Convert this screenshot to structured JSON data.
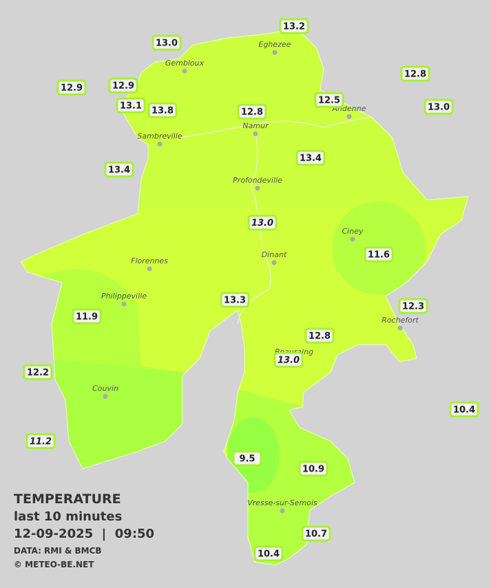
{
  "stations": [
    {
      "value": "13.0"
    },
    {
      "value": "13.2"
    },
    {
      "value": "12.9"
    },
    {
      "value": "12.9"
    },
    {
      "value": "12.8"
    },
    {
      "value": "13.1"
    },
    {
      "value": "13.8"
    },
    {
      "value": "12.8"
    },
    {
      "value": "12.5"
    },
    {
      "value": "13.0"
    },
    {
      "value": "13.4"
    },
    {
      "value": "13.4"
    },
    {
      "value": "13.0"
    },
    {
      "value": "11.6"
    },
    {
      "value": "13.3"
    },
    {
      "value": "12.3"
    },
    {
      "value": "11.9"
    },
    {
      "value": "12.8"
    },
    {
      "value": "13.0"
    },
    {
      "value": "12.2"
    },
    {
      "value": "10.4"
    },
    {
      "value": "11.2"
    },
    {
      "value": "9.5"
    },
    {
      "value": "10.9"
    },
    {
      "value": "10.7"
    },
    {
      "value": "10.4"
    }
  ],
  "cities": [
    {
      "name": "Eghezee"
    },
    {
      "name": "Gembloux"
    },
    {
      "name": "Andenne"
    },
    {
      "name": "Namur"
    },
    {
      "name": "Sambreville"
    },
    {
      "name": "Profondeville"
    },
    {
      "name": "Ciney"
    },
    {
      "name": "Dinant"
    },
    {
      "name": "Florennes"
    },
    {
      "name": "Philippeville"
    },
    {
      "name": "Rochefort"
    },
    {
      "name": "Beauraing"
    },
    {
      "name": "Couvin"
    },
    {
      "name": "Vresse-sur-Semois"
    }
  ],
  "legend": {
    "title": "TEMPERATURE",
    "subtitle": "last 10 minutes",
    "datetime": "12-09-2025  |  09:50",
    "source": "DATA: RMI & BMCB",
    "copyright": "© METEO-BE.NET"
  }
}
